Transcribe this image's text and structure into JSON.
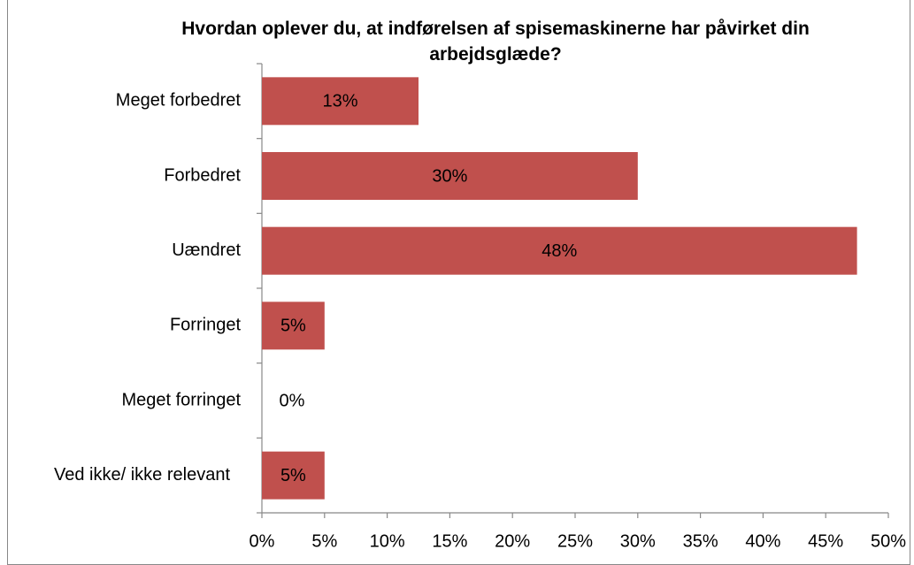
{
  "chart_data": {
    "type": "barh",
    "title": "Hvordan oplever du, at indførelsen af spisemaskinerne har påvirket din arbejdsglæde?",
    "categories": [
      "Meget forbedret",
      "Forbedret",
      "Uændret",
      "Forringet",
      "Meget forringet",
      "Ved ikke/ ikke relevant"
    ],
    "values": [
      12.5,
      30,
      47.5,
      5,
      0,
      5
    ],
    "value_labels": [
      "13%",
      "30%",
      "48%",
      "5%",
      "0%",
      "5%"
    ],
    "color": "#c0504d",
    "xlim": [
      0,
      50
    ],
    "xticks": [
      {
        "value": 0,
        "label": "0%"
      },
      {
        "value": 5,
        "label": "5%"
      },
      {
        "value": 10,
        "label": "10%"
      },
      {
        "value": 15,
        "label": "15%"
      },
      {
        "value": 20,
        "label": "20%"
      },
      {
        "value": 25,
        "label": "25%"
      },
      {
        "value": 30,
        "label": "30%"
      },
      {
        "value": 35,
        "label": "35%"
      },
      {
        "value": 40,
        "label": "40%"
      },
      {
        "value": 45,
        "label": "45%"
      },
      {
        "value": 50,
        "label": "50%"
      }
    ],
    "grid": false
  }
}
